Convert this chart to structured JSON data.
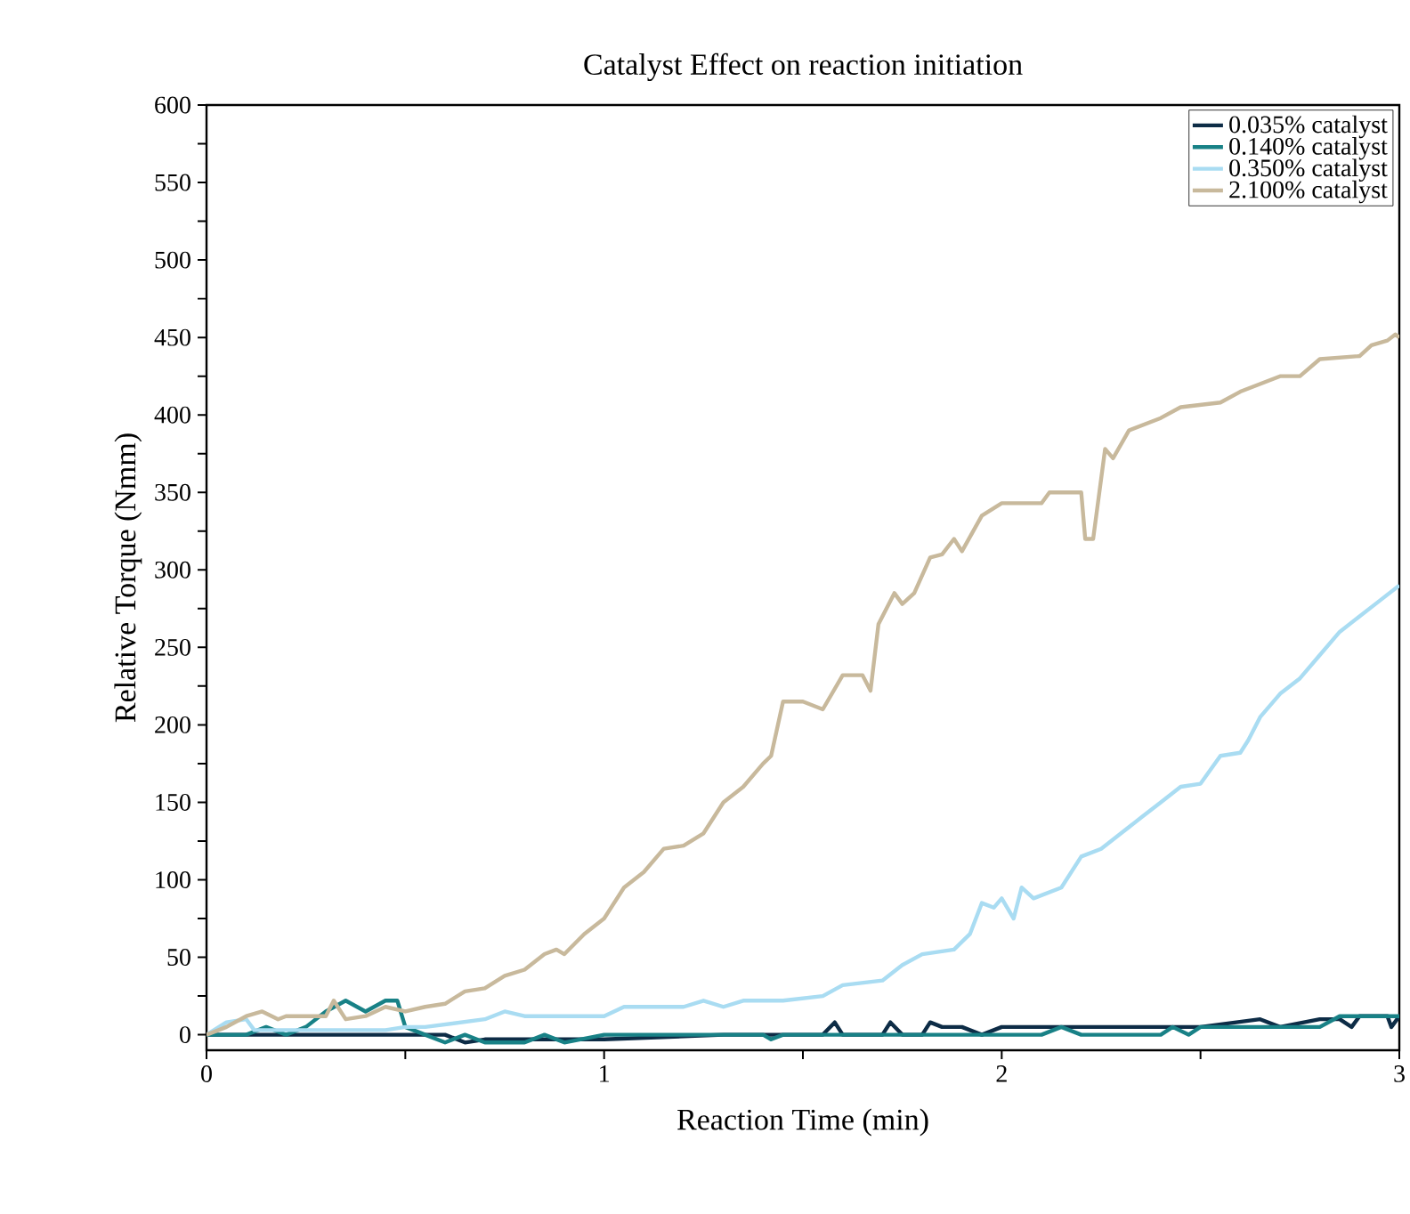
{
  "chart_data": {
    "type": "line",
    "title": "Catalyst Effect on reaction initiation",
    "xlabel": "Reaction Time (min)",
    "ylabel": "Relative Torque (Nmm)",
    "xlim": [
      0,
      3
    ],
    "ylim": [
      -10,
      600
    ],
    "xticks": [
      0,
      {
        "value": 0.5,
        "label": null
      },
      1,
      {
        "value": 1.5,
        "label": null
      },
      2,
      {
        "value": 2.5,
        "label": null
      },
      3
    ],
    "yticks": [
      0,
      {
        "value": 25,
        "label": null
      },
      50,
      {
        "value": 75,
        "label": null
      },
      100,
      {
        "value": 125,
        "label": null
      },
      150,
      {
        "value": 175,
        "label": null
      },
      200,
      {
        "value": 225,
        "label": null
      },
      250,
      {
        "value": 275,
        "label": null
      },
      300,
      {
        "value": 325,
        "label": null
      },
      350,
      {
        "value": 375,
        "label": null
      },
      400,
      {
        "value": 425,
        "label": null
      },
      450,
      {
        "value": 475,
        "label": null
      },
      500,
      {
        "value": 525,
        "label": null
      },
      550,
      {
        "value": 575,
        "label": null
      },
      600
    ],
    "grid": false,
    "legend": "top right",
    "marker": "none",
    "line_style": "solid",
    "series": [
      {
        "name": "0.035% catalyst",
        "color": "#0d2c46",
        "x": [
          0,
          0.5,
          0.6,
          0.65,
          0.7,
          1.0,
          1.3,
          1.55,
          1.58,
          1.6,
          1.7,
          1.72,
          1.75,
          1.8,
          1.82,
          1.85,
          1.9,
          1.95,
          2.0,
          2.5,
          2.65,
          2.7,
          2.8,
          2.85,
          2.88,
          2.9,
          2.97,
          2.98,
          3.0
        ],
        "values": [
          0,
          0,
          0,
          -5,
          -3,
          -3,
          0,
          0,
          8,
          0,
          0,
          8,
          0,
          0,
          8,
          5,
          5,
          0,
          5,
          5,
          10,
          5,
          10,
          10,
          5,
          12,
          12,
          5,
          12
        ]
      },
      {
        "name": "0.140% catalyst",
        "color": "#188186",
        "x": [
          0,
          0.1,
          0.15,
          0.2,
          0.25,
          0.3,
          0.35,
          0.4,
          0.45,
          0.48,
          0.5,
          0.55,
          0.6,
          0.65,
          0.7,
          0.8,
          0.85,
          0.9,
          1.0,
          1.4,
          1.42,
          1.45,
          2.1,
          2.15,
          2.2,
          2.4,
          2.43,
          2.47,
          2.5,
          2.8,
          2.85,
          3.0
        ],
        "values": [
          0,
          0,
          5,
          0,
          5,
          15,
          22,
          15,
          22,
          22,
          5,
          0,
          -5,
          0,
          -5,
          -5,
          0,
          -5,
          0,
          0,
          -3,
          0,
          0,
          5,
          0,
          0,
          5,
          0,
          5,
          5,
          12,
          12
        ]
      },
      {
        "name": "0.350% catalyst",
        "color": "#a9dcf2",
        "x": [
          0,
          0.05,
          0.1,
          0.12,
          0.2,
          0.45,
          0.5,
          0.55,
          0.7,
          0.75,
          0.8,
          1.0,
          1.05,
          1.2,
          1.25,
          1.3,
          1.35,
          1.45,
          1.55,
          1.6,
          1.7,
          1.75,
          1.8,
          1.88,
          1.92,
          1.95,
          1.98,
          2.0,
          2.03,
          2.05,
          2.08,
          2.15,
          2.2,
          2.25,
          2.3,
          2.35,
          2.4,
          2.45,
          2.5,
          2.55,
          2.6,
          2.62,
          2.65,
          2.7,
          2.75,
          2.8,
          2.85,
          2.9,
          2.95,
          3.0
        ],
        "values": [
          0,
          8,
          10,
          3,
          3,
          3,
          5,
          5,
          10,
          15,
          12,
          12,
          18,
          18,
          22,
          18,
          22,
          22,
          25,
          32,
          35,
          45,
          52,
          55,
          65,
          85,
          82,
          88,
          75,
          95,
          88,
          95,
          115,
          120,
          130,
          140,
          150,
          160,
          162,
          180,
          182,
          190,
          205,
          220,
          230,
          245,
          260,
          270,
          280,
          290
        ]
      },
      {
        "name": "2.100% catalyst",
        "color": "#c8b99c",
        "x": [
          0,
          0.05,
          0.1,
          0.14,
          0.18,
          0.2,
          0.3,
          0.32,
          0.35,
          0.4,
          0.45,
          0.5,
          0.55,
          0.6,
          0.65,
          0.7,
          0.75,
          0.8,
          0.85,
          0.88,
          0.9,
          0.95,
          1.0,
          1.05,
          1.1,
          1.15,
          1.2,
          1.25,
          1.3,
          1.35,
          1.4,
          1.42,
          1.45,
          1.5,
          1.55,
          1.6,
          1.65,
          1.67,
          1.69,
          1.73,
          1.75,
          1.78,
          1.82,
          1.85,
          1.88,
          1.9,
          1.95,
          2.0,
          2.1,
          2.12,
          2.2,
          2.21,
          2.23,
          2.26,
          2.28,
          2.32,
          2.4,
          2.45,
          2.55,
          2.6,
          2.7,
          2.75,
          2.8,
          2.9,
          2.93,
          2.97,
          2.99,
          3.0
        ],
        "values": [
          0,
          5,
          12,
          15,
          10,
          12,
          12,
          22,
          10,
          12,
          18,
          15,
          18,
          20,
          28,
          30,
          38,
          42,
          52,
          55,
          52,
          65,
          75,
          95,
          105,
          120,
          122,
          130,
          150,
          160,
          175,
          180,
          215,
          215,
          210,
          232,
          232,
          222,
          265,
          285,
          278,
          285,
          308,
          310,
          320,
          312,
          335,
          343,
          343,
          350,
          350,
          320,
          320,
          378,
          372,
          390,
          398,
          405,
          408,
          415,
          425,
          425,
          436,
          438,
          445,
          448,
          452,
          450
        ]
      }
    ]
  }
}
